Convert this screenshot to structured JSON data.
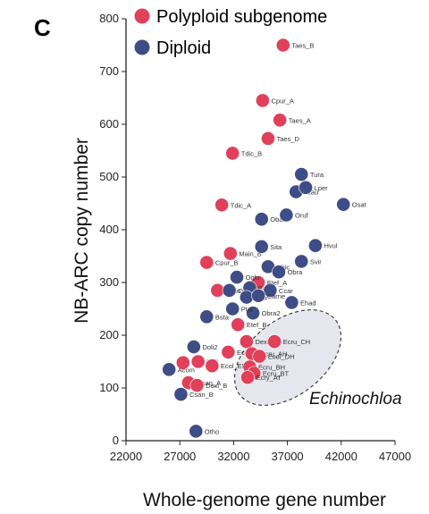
{
  "panel_label": "C",
  "chart_data": {
    "type": "scatter",
    "xlabel": "Whole-genome gene number",
    "ylabel": "NB-ARC copy number",
    "xlim": [
      22000,
      47000
    ],
    "ylim": [
      0,
      800
    ],
    "xticks": [
      "22000",
      "27000",
      "32000",
      "37000",
      "42000",
      "47000"
    ],
    "yticks": [
      "0",
      "100",
      "200",
      "300",
      "400",
      "500",
      "600",
      "700",
      "800"
    ],
    "legend": {
      "placement": "top-left"
    },
    "colors": {
      "polyploid": "#e0405a",
      "diploid": "#3f4d87",
      "ellipse_fill": "#e6e7ee",
      "ellipse_stroke": "#333333"
    },
    "annotation": "Echinochloa",
    "series": [
      {
        "name": "Polyploid subgenome",
        "color": "#e0405a",
        "points": [
          {
            "label": "Taes_B",
            "x": 36600,
            "y": 750
          },
          {
            "label": "Cpur_A",
            "x": 34700,
            "y": 645
          },
          {
            "label": "Taes_A",
            "x": 36300,
            "y": 608
          },
          {
            "label": "Taes_D",
            "x": 35200,
            "y": 573
          },
          {
            "label": "Tdic_B",
            "x": 31900,
            "y": 545
          },
          {
            "label": "Tdic_A",
            "x": 30900,
            "y": 447
          },
          {
            "label": "Cpur_B",
            "x": 29500,
            "y": 338
          },
          {
            "label": "Main_B",
            "x": 31700,
            "y": 355
          },
          {
            "label": "Main_A",
            "x": 30500,
            "y": 285
          },
          {
            "label": "Etef_A",
            "x": 34300,
            "y": 300
          },
          {
            "label": "Etef_B",
            "x": 32400,
            "y": 220
          },
          {
            "label": "Ecol_FH",
            "x": 31500,
            "y": 168
          },
          {
            "label": "Dexi_A",
            "x": 33200,
            "y": 188
          },
          {
            "label": "Acoru",
            "x": 27300,
            "y": 148
          },
          {
            "label": "Doli",
            "x": 28700,
            "y": 150
          },
          {
            "label": "Csan_A",
            "x": 27800,
            "y": 110
          },
          {
            "label": "Dexi_B",
            "x": 28600,
            "y": 105
          },
          {
            "label": "Ecol_EH",
            "x": 30000,
            "y": 142
          },
          {
            "label": "Ecru_AH",
            "x": 33700,
            "y": 165
          },
          {
            "label": "Ecru_CH",
            "x": 35800,
            "y": 188
          },
          {
            "label": "Ecol_DH",
            "x": 34400,
            "y": 160
          },
          {
            "label": "Ecru_BH",
            "x": 33500,
            "y": 140
          },
          {
            "label": "Ecru_BT",
            "x": 33900,
            "y": 128
          },
          {
            "label": "Ecry_AT",
            "x": 33300,
            "y": 120
          }
        ]
      },
      {
        "name": "Diploid",
        "color": "#3f4d87",
        "points": [
          {
            "label": "Tura",
            "x": 38300,
            "y": 505
          },
          {
            "label": "Atau",
            "x": 37800,
            "y": 472
          },
          {
            "label": "Lper",
            "x": 38700,
            "y": 480
          },
          {
            "label": "Osat",
            "x": 42200,
            "y": 448
          },
          {
            "label": "Obar",
            "x": 34600,
            "y": 420
          },
          {
            "label": "Oruf",
            "x": 36900,
            "y": 428
          },
          {
            "label": "Hvul",
            "x": 39600,
            "y": 370
          },
          {
            "label": "Sita",
            "x": 34600,
            "y": 368
          },
          {
            "label": "Sbic",
            "x": 35200,
            "y": 330
          },
          {
            "label": "Svir",
            "x": 38300,
            "y": 340
          },
          {
            "label": "Obra",
            "x": 36200,
            "y": 320
          },
          {
            "label": "Oglu",
            "x": 32300,
            "y": 310
          },
          {
            "label": "Opun",
            "x": 31600,
            "y": 285
          },
          {
            "label": "Bdis",
            "x": 33500,
            "y": 290
          },
          {
            "label": "Pha",
            "x": 33200,
            "y": 272
          },
          {
            "label": "Ccar",
            "x": 35400,
            "y": 285
          },
          {
            "label": "Carne",
            "x": 34300,
            "y": 275
          },
          {
            "label": "Ehad",
            "x": 37400,
            "y": 262
          },
          {
            "label": "Obra2",
            "x": 33800,
            "y": 242
          },
          {
            "label": "Bsta",
            "x": 29500,
            "y": 235
          },
          {
            "label": "Ptal",
            "x": 31900,
            "y": 250
          },
          {
            "label": "Doli2",
            "x": 28300,
            "y": 178
          },
          {
            "label": "Acom",
            "x": 26000,
            "y": 135
          },
          {
            "label": "Csan_B",
            "x": 27100,
            "y": 88
          },
          {
            "label": "Otho",
            "x": 28500,
            "y": 18
          }
        ]
      }
    ]
  }
}
